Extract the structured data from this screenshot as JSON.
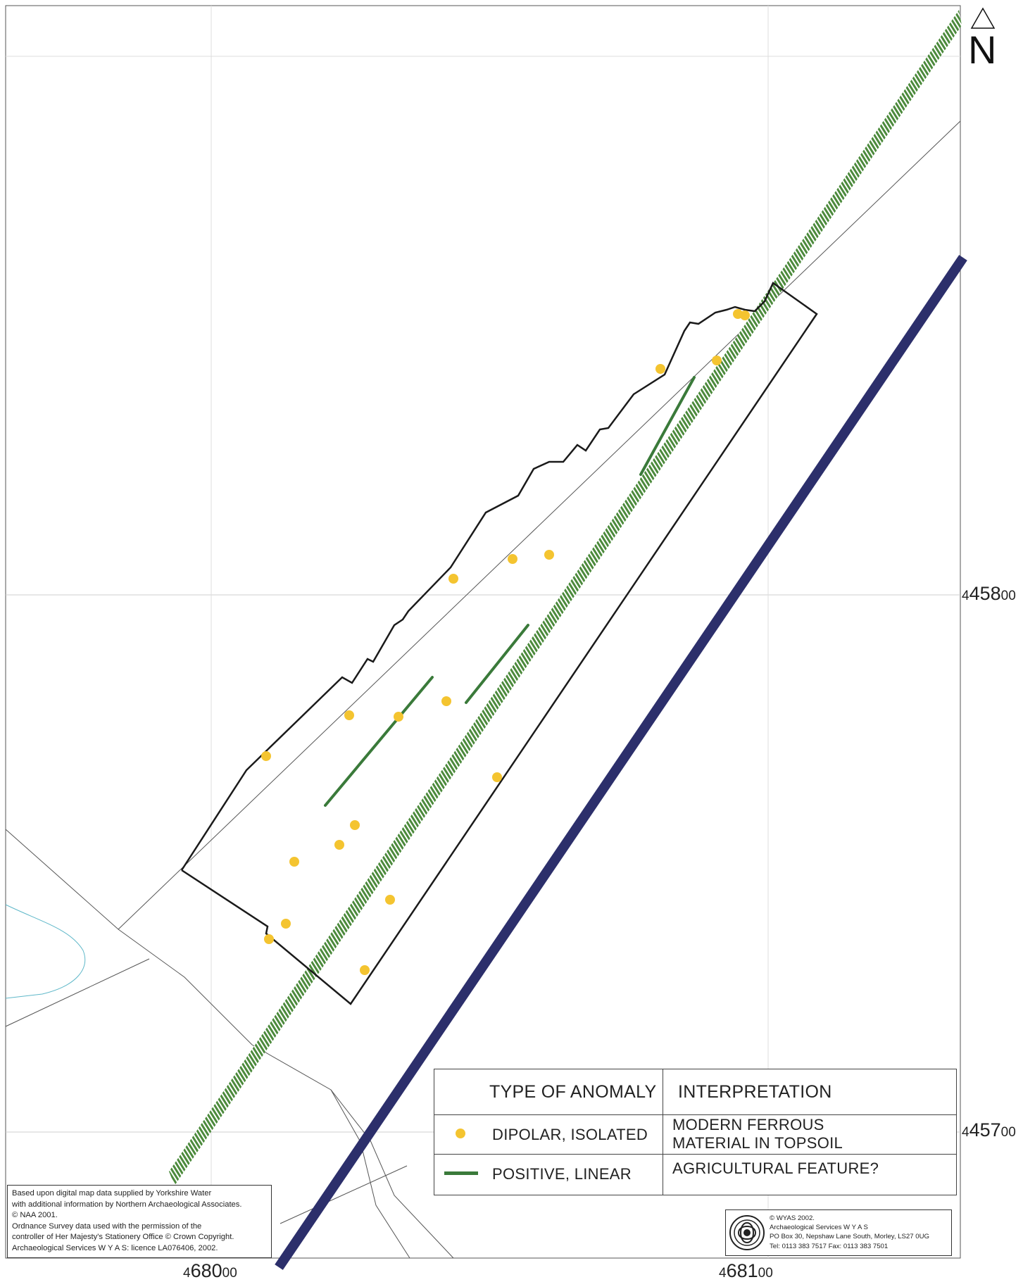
{
  "map": {
    "north_label": "N",
    "colors": {
      "dipolar": "#f4c430",
      "linear": "#3a7a3a",
      "pipeline_hatch": "#4c8a3c",
      "road": "#2c2f6b",
      "boundary": "#1a1a1a"
    }
  },
  "grid": {
    "easting_1": {
      "prefix": "4",
      "main": "680",
      "suffix": "00"
    },
    "easting_2": {
      "prefix": "4",
      "main": "681",
      "suffix": "00"
    },
    "northing_1": {
      "prefix": "4",
      "main": "458",
      "suffix": "00"
    },
    "northing_2": {
      "prefix": "4",
      "main": "457",
      "suffix": "00"
    }
  },
  "legend": {
    "col1_header": "TYPE OF ANOMALY",
    "col2_header": "INTERPRETATION",
    "rows": [
      {
        "type": "DIPOLAR, ISOLATED",
        "interp_line1": "MODERN FERROUS",
        "interp_line2": "MATERIAL IN TOPSOIL",
        "symbol": "dot"
      },
      {
        "type": "POSITIVE, LINEAR",
        "interp_line1": "AGRICULTURAL FEATURE?",
        "interp_line2": "",
        "symbol": "line"
      }
    ]
  },
  "credits": {
    "lines": [
      "Based upon digital map data supplied by Yorkshire Water",
      "with additional information by Northern Archaeological Associates.",
      "© NAA 2001.",
      "Ordnance Survey data used with the permission of the",
      "controller of Her Majesty's Stationery Office © Crown Copyright.",
      "Archaeological Services W Y A S: licence LA076406, 2002."
    ]
  },
  "wyas": {
    "logo": "wyas-knot-logo",
    "lines": [
      "© WYAS 2002.",
      "Archaeological Services W Y A S",
      "PO Box 30, Nepshaw Lane South, Morley, LS27 0UG",
      "Tel: 0113 383 7517   Fax: 0113 383 7501"
    ]
  }
}
